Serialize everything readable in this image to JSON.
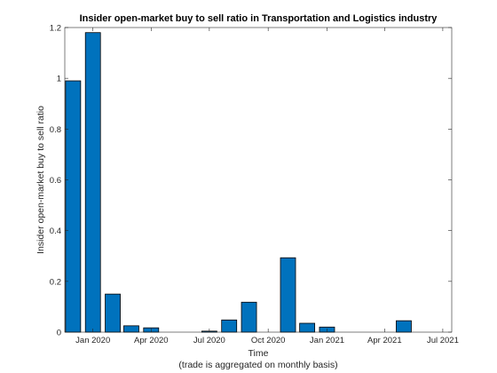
{
  "chart_data": {
    "type": "bar",
    "title": "Insider open-market buy to sell ratio in Transportation and Logistics industry",
    "xlabel": "Time",
    "xlabel_note": "(trade is aggregated on monthly basis)",
    "ylabel": "Insider open-market buy to sell ratio",
    "ylim": [
      0,
      1.2
    ],
    "yticks": [
      "0",
      "0.2",
      "0.4",
      "0.6",
      "0.8",
      "1",
      "1.2"
    ],
    "xlim": [
      "2019-11-18",
      "2021-07-15"
    ],
    "xticks": [
      {
        "date": "2020-01-01",
        "label": "Jan 2020"
      },
      {
        "date": "2020-04-01",
        "label": "Apr 2020"
      },
      {
        "date": "2020-07-01",
        "label": "Jul 2020"
      },
      {
        "date": "2020-10-01",
        "label": "Oct 2020"
      },
      {
        "date": "2021-01-01",
        "label": "Jan 2021"
      },
      {
        "date": "2021-04-01",
        "label": "Apr 2021"
      },
      {
        "date": "2021-07-01",
        "label": "Jul 2021"
      }
    ],
    "x": [
      "2019-12-01",
      "2020-01-01",
      "2020-02-01",
      "2020-03-01",
      "2020-04-01",
      "2020-05-01",
      "2020-06-01",
      "2020-07-01",
      "2020-08-01",
      "2020-09-01",
      "2020-10-01",
      "2020-11-01",
      "2020-12-01",
      "2021-01-01",
      "2021-02-01",
      "2021-03-01",
      "2021-04-01",
      "2021-05-01",
      "2021-06-01"
    ],
    "values": [
      0.99,
      1.18,
      0.15,
      0.025,
      0.017,
      0,
      0,
      0.004,
      0.048,
      0.118,
      0,
      0.293,
      0.035,
      0.02,
      0,
      0,
      0,
      0.045,
      0
    ],
    "bar_color": "#0072bd",
    "grid": false,
    "box": true
  }
}
